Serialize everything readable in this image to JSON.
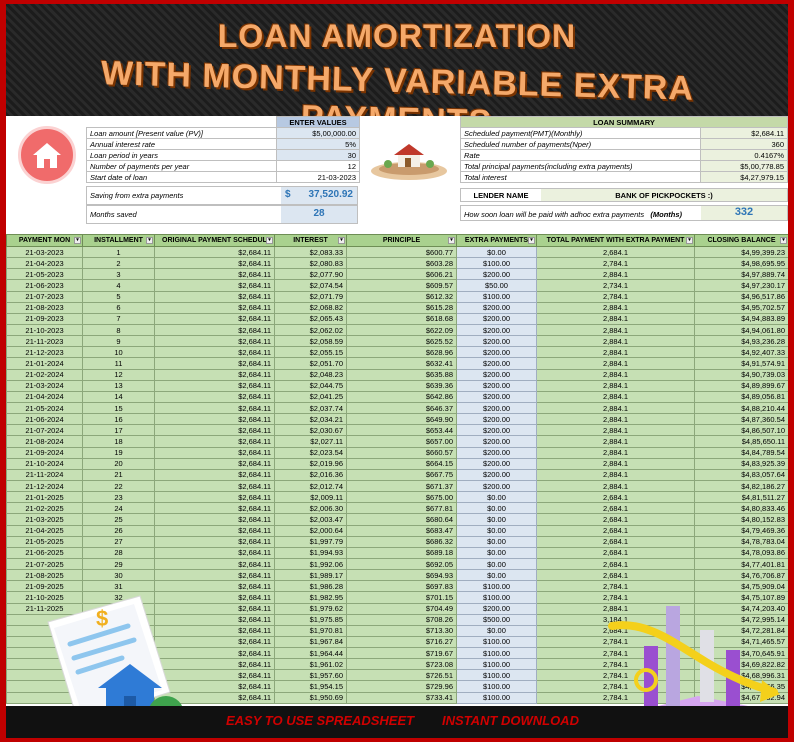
{
  "title": {
    "line1": "LOAN AMORTIZATION",
    "line2": "WITH MONTHLY VARIABLE EXTRA PAYMENTS"
  },
  "inputs": {
    "header": "ENTER VALUES",
    "rows": [
      {
        "label": "Loan amount [Present value (PV)]",
        "value": "$5,00,000.00"
      },
      {
        "label": "Annual interest rate",
        "value": "5%"
      },
      {
        "label": "Loan period in years",
        "value": "30"
      },
      {
        "label": "Number of payments per year",
        "value": "12"
      },
      {
        "label": "Start date of loan",
        "value": "21-03-2023"
      }
    ],
    "saving_label": "Saving from extra payments",
    "saving_currency": "$",
    "saving_value": "37,520.92",
    "months_saved_label": "Months saved",
    "months_saved_value": "28"
  },
  "summary": {
    "header": "LOAN SUMMARY",
    "rows": [
      {
        "label": "Scheduled payment(PMT)(Monthly)",
        "value": "$2,684.11"
      },
      {
        "label": "Scheduled number of payments(Nper)",
        "value": "360"
      },
      {
        "label": "Rate",
        "value": "0.4167%"
      },
      {
        "label": "Total principal payments(including extra payments)",
        "value": "$5,00,778.85"
      },
      {
        "label": "Total interest",
        "value": "$4,27,979.15"
      }
    ],
    "lender_label": "LENDER NAME",
    "lender_value": "BANK OF PICKPOCKETS :)",
    "soon_label": "How soon loan will be paid with adhoc extra payments",
    "soon_unit": "(Months)",
    "soon_value": "332"
  },
  "columns": [
    "PAYMENT MON",
    "INSTALLMENT",
    "ORIGINAL PAYMENT SCHEDUL",
    "INTEREST",
    "PRINCIPLE",
    "EXTRA PAYMENTS",
    "TOTAL PAYMENT WITH EXTRA PAYMENT",
    "CLOSING BALANCE"
  ],
  "rows": [
    [
      "21-03-2023",
      "1",
      "$2,684.11",
      "$2,083.33",
      "$600.77",
      "$0.00",
      "2,684.1",
      "$4,99,399.23"
    ],
    [
      "21-04-2023",
      "2",
      "$2,684.11",
      "$2,080.83",
      "$603.28",
      "$100.00",
      "2,784.1",
      "$4,98,695.95"
    ],
    [
      "21-05-2023",
      "3",
      "$2,684.11",
      "$2,077.90",
      "$606.21",
      "$200.00",
      "2,884.1",
      "$4,97,889.74"
    ],
    [
      "21-06-2023",
      "4",
      "$2,684.11",
      "$2,074.54",
      "$609.57",
      "$50.00",
      "2,734.1",
      "$4,97,230.17"
    ],
    [
      "21-07-2023",
      "5",
      "$2,684.11",
      "$2,071.79",
      "$612.32",
      "$100.00",
      "2,784.1",
      "$4,96,517.86"
    ],
    [
      "21-08-2023",
      "6",
      "$2,684.11",
      "$2,068.82",
      "$615.28",
      "$200.00",
      "2,884.1",
      "$4,95,702.57"
    ],
    [
      "21-09-2023",
      "7",
      "$2,684.11",
      "$2,065.43",
      "$618.68",
      "$200.00",
      "2,884.1",
      "$4,94,883.89"
    ],
    [
      "21-10-2023",
      "8",
      "$2,684.11",
      "$2,062.02",
      "$622.09",
      "$200.00",
      "2,884.1",
      "$4,94,061.80"
    ],
    [
      "21-11-2023",
      "9",
      "$2,684.11",
      "$2,058.59",
      "$625.52",
      "$200.00",
      "2,884.1",
      "$4,93,236.28"
    ],
    [
      "21-12-2023",
      "10",
      "$2,684.11",
      "$2,055.15",
      "$628.96",
      "$200.00",
      "2,884.1",
      "$4,92,407.33"
    ],
    [
      "21-01-2024",
      "11",
      "$2,684.11",
      "$2,051.70",
      "$632.41",
      "$200.00",
      "2,884.1",
      "$4,91,574.91"
    ],
    [
      "21-02-2024",
      "12",
      "$2,684.11",
      "$2,048.23",
      "$635.88",
      "$200.00",
      "2,884.1",
      "$4,90,739.03"
    ],
    [
      "21-03-2024",
      "13",
      "$2,684.11",
      "$2,044.75",
      "$639.36",
      "$200.00",
      "2,884.1",
      "$4,89,899.67"
    ],
    [
      "21-04-2024",
      "14",
      "$2,684.11",
      "$2,041.25",
      "$642.86",
      "$200.00",
      "2,884.1",
      "$4,89,056.81"
    ],
    [
      "21-05-2024",
      "15",
      "$2,684.11",
      "$2,037.74",
      "$646.37",
      "$200.00",
      "2,884.1",
      "$4,88,210.44"
    ],
    [
      "21-06-2024",
      "16",
      "$2,684.11",
      "$2,034.21",
      "$649.90",
      "$200.00",
      "2,884.1",
      "$4,87,360.54"
    ],
    [
      "21-07-2024",
      "17",
      "$2,684.11",
      "$2,030.67",
      "$653.44",
      "$200.00",
      "2,884.1",
      "$4,86,507.10"
    ],
    [
      "21-08-2024",
      "18",
      "$2,684.11",
      "$2,027.11",
      "$657.00",
      "$200.00",
      "2,884.1",
      "$4,85,650.11"
    ],
    [
      "21-09-2024",
      "19",
      "$2,684.11",
      "$2,023.54",
      "$660.57",
      "$200.00",
      "2,884.1",
      "$4,84,789.54"
    ],
    [
      "21-10-2024",
      "20",
      "$2,684.11",
      "$2,019.96",
      "$664.15",
      "$200.00",
      "2,884.1",
      "$4,83,925.39"
    ],
    [
      "21-11-2024",
      "21",
      "$2,684.11",
      "$2,016.36",
      "$667.75",
      "$200.00",
      "2,884.1",
      "$4,83,057.64"
    ],
    [
      "21-12-2024",
      "22",
      "$2,684.11",
      "$2,012.74",
      "$671.37",
      "$200.00",
      "2,884.1",
      "$4,82,186.27"
    ],
    [
      "21-01-2025",
      "23",
      "$2,684.11",
      "$2,009.11",
      "$675.00",
      "$0.00",
      "2,684.1",
      "$4,81,511.27"
    ],
    [
      "21-02-2025",
      "24",
      "$2,684.11",
      "$2,006.30",
      "$677.81",
      "$0.00",
      "2,684.1",
      "$4,80,833.46"
    ],
    [
      "21-03-2025",
      "25",
      "$2,684.11",
      "$2,003.47",
      "$680.64",
      "$0.00",
      "2,684.1",
      "$4,80,152.83"
    ],
    [
      "21-04-2025",
      "26",
      "$2,684.11",
      "$2,000.64",
      "$683.47",
      "$0.00",
      "2,684.1",
      "$4,79,469.36"
    ],
    [
      "21-05-2025",
      "27",
      "$2,684.11",
      "$1,997.79",
      "$686.32",
      "$0.00",
      "2,684.1",
      "$4,78,783.04"
    ],
    [
      "21-06-2025",
      "28",
      "$2,684.11",
      "$1,994.93",
      "$689.18",
      "$0.00",
      "2,684.1",
      "$4,78,093.86"
    ],
    [
      "21-07-2025",
      "29",
      "$2,684.11",
      "$1,992.06",
      "$692.05",
      "$0.00",
      "2,684.1",
      "$4,77,401.81"
    ],
    [
      "21-08-2025",
      "30",
      "$2,684.11",
      "$1,989.17",
      "$694.93",
      "$0.00",
      "2,684.1",
      "$4,76,706.87"
    ],
    [
      "21-09-2025",
      "31",
      "$2,684.11",
      "$1,986.28",
      "$697.83",
      "$100.00",
      "2,784.1",
      "$4,75,909.04"
    ],
    [
      "21-10-2025",
      "32",
      "$2,684.11",
      "$1,982.95",
      "$701.15",
      "$100.00",
      "2,784.1",
      "$4,75,107.89"
    ],
    [
      "21-11-2025",
      "33",
      "$2,684.11",
      "$1,979.62",
      "$704.49",
      "$200.00",
      "2,884.1",
      "$4,74,203.40"
    ],
    [
      "",
      "",
      "$2,684.11",
      "$1,975.85",
      "$708.26",
      "$500.00",
      "3,184.1",
      "$4,72,995.14"
    ],
    [
      "",
      "",
      "$2,684.11",
      "$1,970.81",
      "$713.30",
      "$0.00",
      "2,684.1",
      "$4,72,281.84"
    ],
    [
      "",
      "",
      "$2,684.11",
      "$1,967.84",
      "$716.27",
      "$100.00",
      "2,784.1",
      "$4,71,465.57"
    ],
    [
      "",
      "",
      "$2,684.11",
      "$1,964.44",
      "$719.67",
      "$100.00",
      "2,784.1",
      "$4,70,645.91"
    ],
    [
      "",
      "",
      "$2,684.11",
      "$1,961.02",
      "$723.08",
      "$100.00",
      "2,784.1",
      "$4,69,822.82"
    ],
    [
      "",
      "",
      "$2,684.11",
      "$1,957.60",
      "$726.51",
      "$100.00",
      "2,784.1",
      "$4,68,996.31"
    ],
    [
      "",
      "",
      "$2,684.11",
      "$1,954.15",
      "$729.96",
      "$100.00",
      "2,784.1",
      "$4,68,166.35"
    ],
    [
      "",
      "",
      "$2,684.11",
      "$1,950.69",
      "$733.41",
      "$100.00",
      "2,784.1",
      "$4,67,332.94"
    ]
  ],
  "footer": {
    "left": "EASY TO USE SPREADSHEET",
    "right": "INSTANT DOWNLOAD"
  },
  "illustration_doc": {
    "symbol1": "$",
    "symbol2": "%"
  },
  "colors": {
    "border": "#c00000",
    "header_green": "#a9d18e",
    "row_green": "#c6e0b4",
    "extra_blue": "#dce6f1",
    "title_orange": "#f5a96a"
  }
}
